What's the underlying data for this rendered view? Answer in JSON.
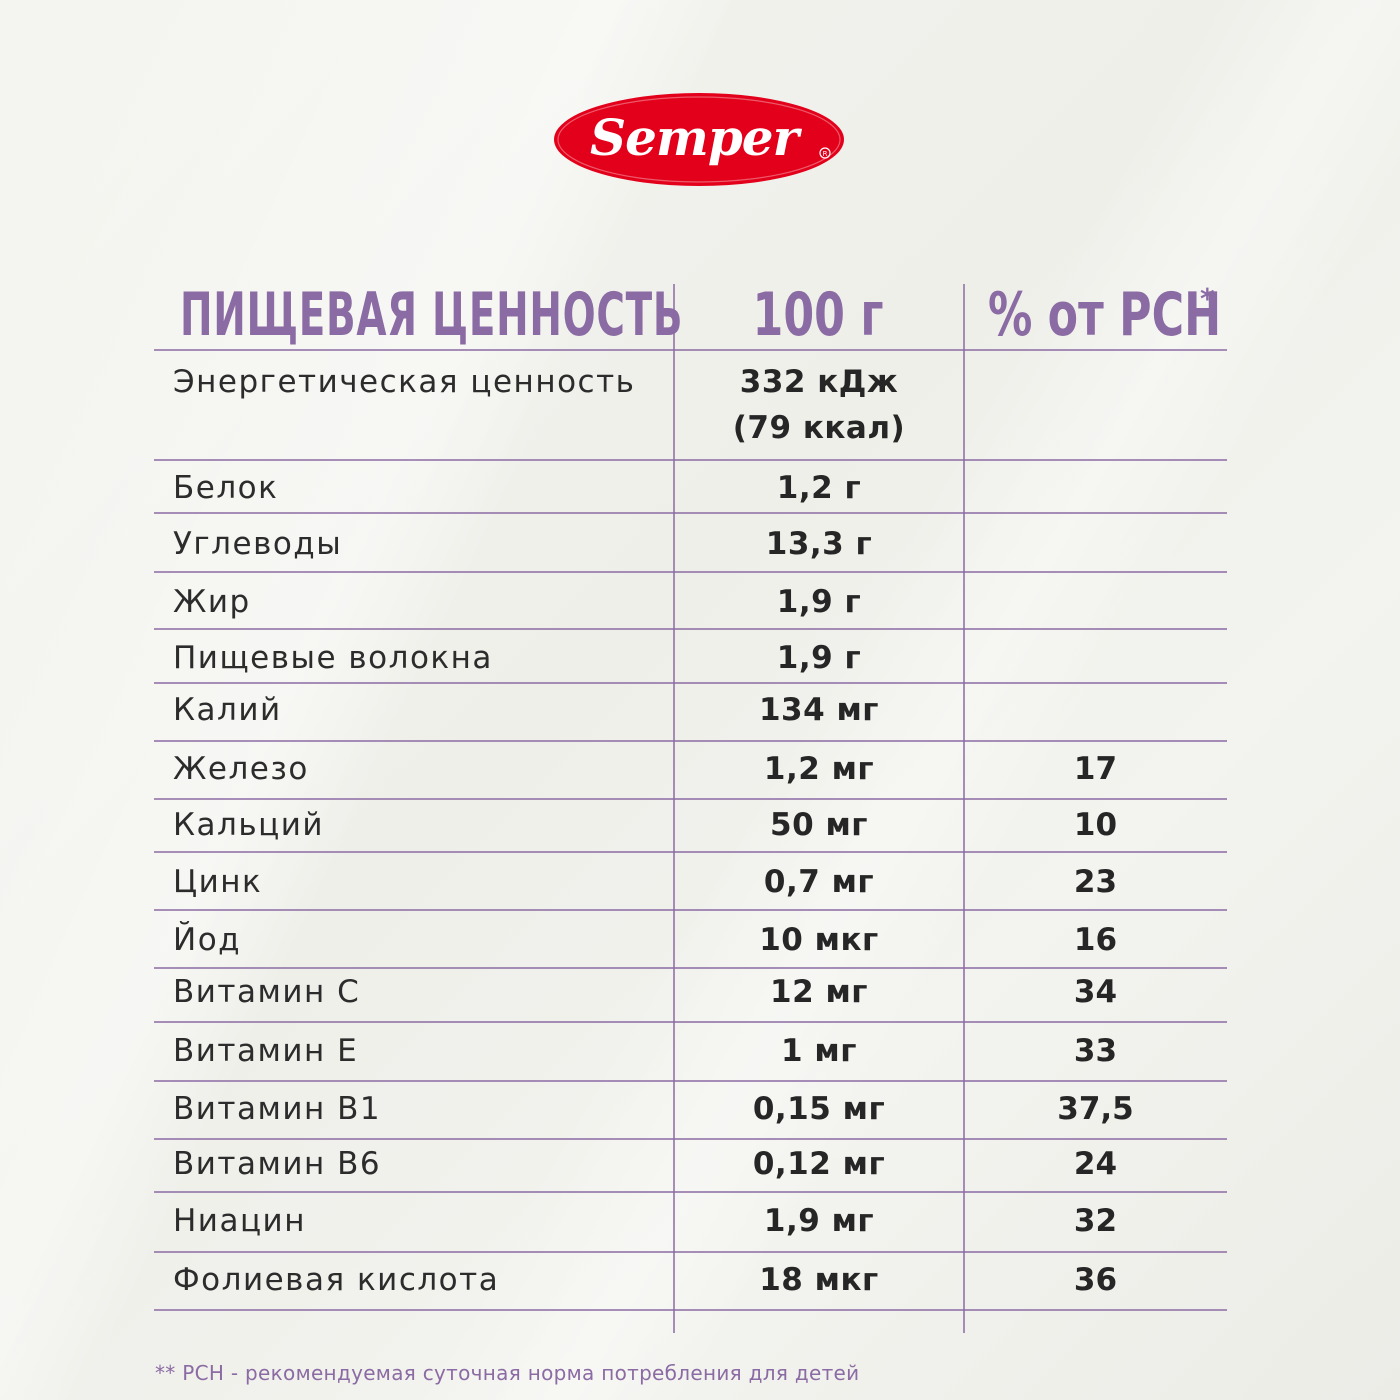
{
  "brand": {
    "logo_text": "Semper",
    "colors": {
      "red": "#e3001b",
      "white": "#ffffff"
    }
  },
  "accent_color": "#8b6ba3",
  "table": {
    "headers": {
      "name": "ПИЩЕВАЯ ЦЕННОСТЬ",
      "quantity": "100 г",
      "rsn": "% от РСН",
      "rsn_marker": "*"
    },
    "rows": [
      {
        "name": "Энергетическая ценность",
        "quantity": "332 кДж",
        "quantity_extra": "(79 ккал)",
        "percent": ""
      },
      {
        "name": "Белок",
        "quantity": "1,2 г",
        "percent": ""
      },
      {
        "name": "Углеводы",
        "quantity": "13,3 г",
        "percent": ""
      },
      {
        "name": "Жир",
        "quantity": "1,9 г",
        "percent": ""
      },
      {
        "name": "Пищевые волокна",
        "quantity": "1,9 г",
        "percent": ""
      },
      {
        "name": "Калий",
        "quantity": "134 мг",
        "percent": ""
      },
      {
        "name": "Железо",
        "quantity": "1,2 мг",
        "percent": "17"
      },
      {
        "name": "Кальций",
        "quantity": "50 мг",
        "percent": "10"
      },
      {
        "name": "Цинк",
        "quantity": "0,7 мг",
        "percent": "23"
      },
      {
        "name": "Йод",
        "quantity": "10 мкг",
        "percent": "16"
      },
      {
        "name": "Витамин С",
        "quantity": "12 мг",
        "percent": "34"
      },
      {
        "name": "Витамин Е",
        "quantity": "1 мг",
        "percent": "33"
      },
      {
        "name": "Витамин B1",
        "quantity": "0,15 мг",
        "percent": "37,5"
      },
      {
        "name": "Витамин B6",
        "quantity": "0,12 мг",
        "percent": "24"
      },
      {
        "name": "Ниацин",
        "quantity": "1,9 мг",
        "percent": "32"
      },
      {
        "name": "Фолиевая кислота",
        "quantity": "18 мкг",
        "percent": "36"
      }
    ]
  },
  "footnote": "** РСН - рекомендуемая суточная норма потребления для детей"
}
